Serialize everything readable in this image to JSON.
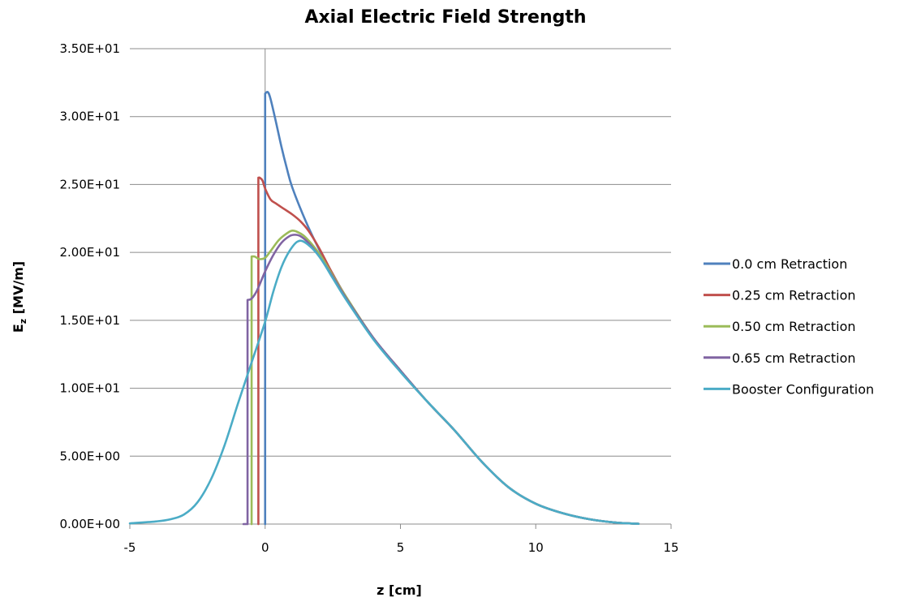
{
  "chart_data": {
    "type": "line",
    "title": "Axial Electric Field Strength",
    "xlabel": "z [cm]",
    "ylabel_main": "E",
    "ylabel_sub": "z",
    "ylabel_rest": " [MV/m]",
    "xlim": [
      -5,
      15
    ],
    "ylim": [
      0,
      35
    ],
    "x_ticks": [
      -5,
      0,
      5,
      10,
      15
    ],
    "x_tick_labels": [
      "-5",
      "0",
      "5",
      "10",
      "15"
    ],
    "y_ticks": [
      0,
      5,
      10,
      15,
      20,
      25,
      30,
      35
    ],
    "y_tick_labels": [
      "0.00E+00",
      "5.00E+00",
      "1.00E+01",
      "1.50E+01",
      "2.00E+01",
      "2.50E+01",
      "3.00E+01",
      "3.50E+01"
    ],
    "grid": "horizontal",
    "legend_position": "right",
    "series": [
      {
        "name": "0.0 cm Retraction",
        "color": "#4f81bd",
        "x": [
          0.0,
          0.0,
          0.1,
          0.2,
          0.4,
          0.6,
          0.8,
          1.0,
          1.5,
          2.0,
          2.5,
          3.0,
          4.0,
          5.0,
          6.0,
          7.0,
          8.0,
          9.0,
          10.0,
          11.0,
          12.0,
          13.0,
          13.8
        ],
        "y": [
          0.0,
          31.7,
          31.8,
          31.3,
          29.6,
          27.8,
          26.2,
          24.8,
          22.3,
          20.2,
          18.4,
          16.7,
          13.7,
          11.3,
          9.0,
          6.9,
          4.6,
          2.7,
          1.5,
          0.8,
          0.35,
          0.1,
          0.02
        ]
      },
      {
        "name": "0.25 cm Retraction",
        "color": "#c0504d",
        "x": [
          -0.25,
          -0.25,
          -0.2,
          -0.1,
          0.0,
          0.2,
          0.4,
          0.7,
          1.0,
          1.3,
          1.6,
          2.0,
          2.5,
          3.0,
          4.0,
          5.0,
          6.0,
          7.0,
          8.0,
          9.0,
          10.0,
          11.0,
          12.0,
          13.0,
          13.8
        ],
        "y": [
          0.0,
          25.5,
          25.5,
          25.3,
          24.7,
          23.9,
          23.6,
          23.2,
          22.8,
          22.3,
          21.6,
          20.3,
          18.4,
          16.7,
          13.7,
          11.3,
          9.0,
          6.9,
          4.6,
          2.7,
          1.5,
          0.8,
          0.35,
          0.1,
          0.02
        ]
      },
      {
        "name": "0.50 cm Retraction",
        "color": "#9bbb59",
        "x": [
          -0.5,
          -0.5,
          -0.4,
          -0.3,
          -0.2,
          0.0,
          0.2,
          0.5,
          0.8,
          1.0,
          1.2,
          1.5,
          2.0,
          2.5,
          3.0,
          4.0,
          5.0,
          6.0,
          7.0,
          8.0,
          9.0,
          10.0,
          11.0,
          12.0,
          13.0,
          13.8
        ],
        "y": [
          0.0,
          19.7,
          19.7,
          19.6,
          19.5,
          19.6,
          20.1,
          20.9,
          21.4,
          21.6,
          21.5,
          21.1,
          19.9,
          18.3,
          16.7,
          13.7,
          11.3,
          9.0,
          6.9,
          4.6,
          2.7,
          1.5,
          0.8,
          0.35,
          0.1,
          0.02
        ]
      },
      {
        "name": "0.65 cm Retraction",
        "color": "#8064a2",
        "x": [
          -0.8,
          -0.65,
          -0.65,
          -0.5,
          -0.3,
          0.0,
          0.3,
          0.6,
          0.9,
          1.1,
          1.3,
          1.6,
          2.0,
          2.5,
          3.0,
          4.0,
          5.0,
          6.0,
          7.0,
          8.0,
          9.0,
          10.0,
          11.0,
          12.0,
          13.0,
          13.8
        ],
        "y": [
          0.0,
          0.0,
          16.5,
          16.6,
          17.2,
          18.6,
          19.8,
          20.7,
          21.2,
          21.3,
          21.2,
          20.7,
          19.7,
          18.2,
          16.6,
          13.7,
          11.3,
          9.0,
          6.9,
          4.6,
          2.7,
          1.5,
          0.8,
          0.35,
          0.1,
          0.02
        ]
      },
      {
        "name": "Booster Configuration",
        "color": "#4bacc6",
        "x": [
          -5.0,
          -4.0,
          -3.5,
          -3.0,
          -2.5,
          -2.0,
          -1.5,
          -1.0,
          -0.5,
          0.0,
          0.3,
          0.6,
          0.9,
          1.2,
          1.5,
          2.0,
          2.5,
          3.0,
          4.0,
          5.0,
          6.0,
          7.0,
          8.0,
          9.0,
          10.0,
          11.0,
          12.0,
          13.0,
          13.8
        ],
        "y": [
          0.05,
          0.2,
          0.35,
          0.7,
          1.6,
          3.3,
          5.8,
          8.9,
          11.9,
          14.9,
          17.1,
          18.9,
          20.1,
          20.8,
          20.7,
          19.7,
          18.1,
          16.5,
          13.6,
          11.2,
          9.0,
          6.9,
          4.6,
          2.7,
          1.5,
          0.8,
          0.35,
          0.1,
          0.02
        ]
      }
    ]
  }
}
